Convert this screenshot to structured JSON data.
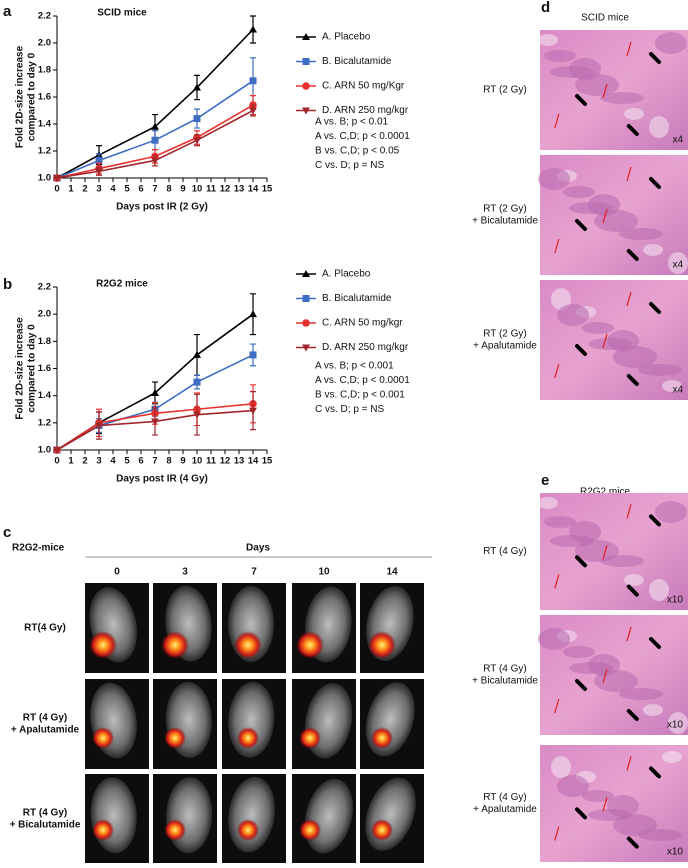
{
  "panel_labels": [
    "a",
    "b",
    "c",
    "d",
    "e"
  ],
  "chart_data": [
    {
      "type": "line",
      "title": "SCID mice",
      "ylabel": [
        "Fold 2D-size increase",
        "compared to day 0"
      ],
      "xlabel": "Days post IR (2 Gy)",
      "x": [
        0,
        3,
        7,
        10,
        14
      ],
      "xlim": [
        0,
        15
      ],
      "xticks": [
        0,
        1,
        2,
        3,
        4,
        5,
        6,
        7,
        8,
        9,
        10,
        11,
        12,
        13,
        14,
        15
      ],
      "ylim": [
        1,
        2.2
      ],
      "yticks": [
        {
          "value": 1,
          "label": "1.0"
        },
        1.2,
        1.4,
        1.6,
        1.8,
        {
          "value": 2,
          "label": "2.0"
        },
        2.2
      ],
      "series": [
        {
          "name": "A. Placebo",
          "color": "#000000",
          "marker": "triangle",
          "values": [
            1.0,
            1.17,
            1.38,
            1.67,
            2.1
          ],
          "errors": [
            0,
            0.07,
            0.09,
            0.09,
            0.1
          ]
        },
        {
          "name": "B. Bicalutamide",
          "color": "#3e6dc2",
          "marker": "square",
          "values": [
            1.0,
            1.13,
            1.28,
            1.44,
            1.72
          ],
          "errors": [
            0,
            0.05,
            0.07,
            0.07,
            0.17
          ]
        },
        {
          "name": "C. ARN 50 mg/Kgr",
          "color": "#e8322d",
          "marker": "circle",
          "values": [
            1.0,
            1.07,
            1.16,
            1.3,
            1.54
          ],
          "errors": [
            0,
            0.04,
            0.05,
            0.05,
            0.07
          ]
        },
        {
          "name": "D. ARN 250 mg/kgr",
          "color": "#a3262b",
          "marker": "triangle-down",
          "values": [
            1.0,
            1.05,
            1.13,
            1.28,
            1.5
          ],
          "errors": [
            0,
            0.03,
            0.04,
            0.04,
            0.04
          ]
        }
      ],
      "annotations": [
        "A vs. B; p < 0.01",
        "A vs. C,D; p < 0.0001",
        "B vs. C,D; p < 0.05",
        "C vs. D; p = NS"
      ]
    },
    {
      "type": "line",
      "title": "R2G2 mice",
      "ylabel": [
        "Fold 2D-size increase",
        "compared to day 0"
      ],
      "xlabel": "Days post IR (4 Gy)",
      "x": [
        0,
        3,
        7,
        10,
        14
      ],
      "xlim": [
        0,
        15
      ],
      "xticks": [
        0,
        1,
        2,
        3,
        4,
        5,
        6,
        7,
        8,
        9,
        10,
        11,
        12,
        13,
        14,
        15
      ],
      "ylim": [
        1,
        2.2
      ],
      "yticks": [
        {
          "value": 1,
          "label": "1.0"
        },
        1.2,
        1.4,
        1.6,
        1.8,
        {
          "value": 2,
          "label": "2.0"
        },
        2.2
      ],
      "series": [
        {
          "name": "A. Placebo",
          "color": "#000000",
          "marker": "triangle",
          "values": [
            1.0,
            1.2,
            1.42,
            1.7,
            2.0
          ],
          "errors": [
            0,
            0.08,
            0.08,
            0.15,
            0.15
          ]
        },
        {
          "name": "B. Bicalutamide",
          "color": "#3e6dc2",
          "marker": "square",
          "values": [
            1.0,
            1.18,
            1.3,
            1.5,
            1.7
          ],
          "errors": [
            0,
            0.05,
            0.05,
            0.05,
            0.08
          ]
        },
        {
          "name": "C. ARN 50 mg/kgr",
          "color": "#e8322d",
          "marker": "circle",
          "values": [
            1.0,
            1.2,
            1.27,
            1.3,
            1.34
          ],
          "errors": [
            0,
            0.1,
            0.08,
            0.12,
            0.14
          ]
        },
        {
          "name": "D. ARN 250 mg/kgr",
          "color": "#a3262b",
          "marker": "triangle-down",
          "values": [
            1.0,
            1.18,
            1.21,
            1.26,
            1.29
          ],
          "errors": [
            0,
            0.1,
            0.1,
            0.15,
            0.14
          ]
        }
      ],
      "annotations": [
        "A vs. B; p < 0.001",
        "A vs. C,D; p < 0.0001",
        "B vs. C,D; p < 0.001",
        "C vs. D; p = NS"
      ]
    }
  ],
  "imaging": {
    "row_header": "R2G2-mice",
    "column_header": "Days",
    "days": [
      "0",
      "3",
      "7",
      "10",
      "14"
    ],
    "rows": [
      [
        "RT(4 Gy)"
      ],
      [
        "RT (4 Gy)",
        "+ Apalutamide"
      ],
      [
        "RT (4 Gy)",
        "+ Bicalutamide"
      ]
    ]
  },
  "histology_scid": {
    "title": "SCID mice",
    "rows": [
      {
        "label": [
          "RT (2 Gy)"
        ],
        "magnification": "x4"
      },
      {
        "label": [
          "RT (2 Gy)",
          "+ Bicalutamide"
        ],
        "magnification": "x4"
      },
      {
        "label": [
          "RT (2 Gy)",
          "+ Apalutamide"
        ],
        "magnification": "x4"
      }
    ]
  },
  "histology_r2g2": {
    "title": "R2G2 mice",
    "rows": [
      {
        "label": [
          "RT (4 Gy)"
        ],
        "magnification": "x10"
      },
      {
        "label": [
          "RT (4 Gy)",
          "+ Bicalutamide"
        ],
        "magnification": "x10"
      },
      {
        "label": [
          "RT (4 Gy)",
          "+ Apalutamide"
        ],
        "magnification": "x10"
      }
    ]
  }
}
